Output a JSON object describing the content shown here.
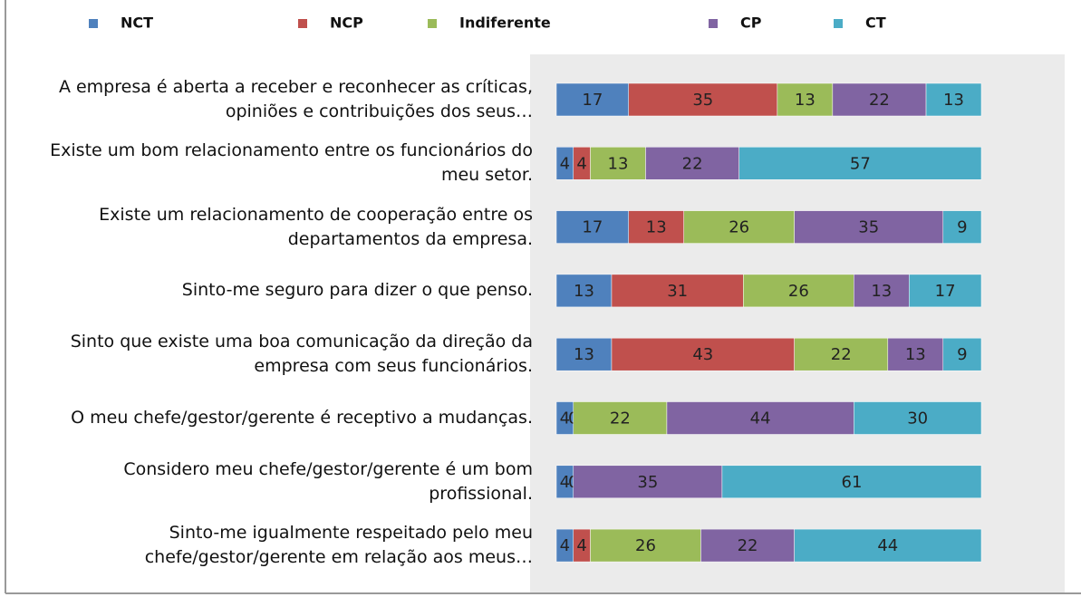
{
  "chart_data": {
    "type": "bar",
    "orientation": "horizontal",
    "stacked": true,
    "categories": [
      "A empresa é aberta a receber e reconhecer as críticas, opiniões e contribuições dos seus…",
      "Existe um bom relacionamento entre os funcionários do meu setor.",
      "Existe um relacionamento de cooperação entre os departamentos da empresa.",
      "Sinto-me seguro para dizer o que penso.",
      "Sinto que existe uma boa comunicação da direção da empresa com seus funcionários.",
      "O meu chefe/gestor/gerente é receptivo a mudanças.",
      "Considero meu chefe/gestor/gerente é um bom profissional.",
      "Sinto-me igualmente respeitado pelo meu chefe/gestor/gerente em relação aos meus…"
    ],
    "series": [
      {
        "name": "NCT",
        "color": "#4f81bd",
        "values": [
          17,
          4,
          17,
          13,
          13,
          4,
          4,
          4
        ]
      },
      {
        "name": "NCP",
        "color": "#c0504d",
        "values": [
          35,
          4,
          13,
          31,
          43,
          0,
          0,
          4
        ]
      },
      {
        "name": "Indiferente",
        "color": "#9bbb59",
        "values": [
          13,
          13,
          26,
          26,
          22,
          22,
          null,
          26
        ]
      },
      {
        "name": "CP",
        "color": "#8064a2",
        "values": [
          22,
          22,
          35,
          13,
          13,
          44,
          35,
          22
        ]
      },
      {
        "name": "CT",
        "color": "#4bacc6",
        "values": [
          13,
          57,
          9,
          17,
          9,
          30,
          61,
          44
        ]
      }
    ],
    "xlim": [
      0,
      100
    ]
  }
}
